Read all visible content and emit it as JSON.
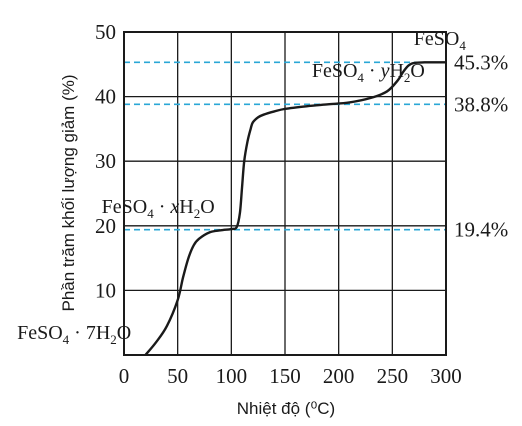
{
  "chart_data": {
    "type": "line",
    "xlabel": "Nhiệt độ (⁰C)",
    "ylabel": "Phần trăm khối lượng giảm (%)",
    "xlim": [
      0,
      300
    ],
    "ylim": [
      0,
      50
    ],
    "xticks": [
      0,
      50,
      100,
      150,
      200,
      250,
      300
    ],
    "yticks": [
      10,
      20,
      30,
      40,
      50
    ],
    "grid": true,
    "series": [
      {
        "x": [
          20,
          30,
          40,
          50,
          55,
          60,
          65,
          70,
          80,
          90,
          100,
          105,
          108,
          110,
          112,
          115,
          118,
          120,
          125,
          130,
          140,
          150,
          170,
          190,
          210,
          230,
          245,
          255,
          260,
          265,
          270,
          280,
          290,
          300
        ],
        "y": [
          0,
          2,
          4.5,
          8.5,
          12,
          15,
          17,
          18,
          19,
          19.3,
          19.5,
          19.8,
          22,
          26,
          30,
          33,
          35,
          36,
          36.8,
          37.2,
          37.7,
          38.1,
          38.5,
          38.8,
          39.1,
          39.8,
          40.8,
          42.5,
          43.8,
          44.8,
          45.2,
          45.3,
          45.3,
          45.3
        ]
      }
    ],
    "reference_lines": [
      {
        "y": 45.3,
        "label": "45.3%"
      },
      {
        "y": 38.8,
        "label": "38.8%"
      },
      {
        "y": 19.4,
        "label": "19.4%"
      }
    ],
    "annotations": {
      "a1": {
        "formula": "FeSO",
        "sub": "4",
        "x": 270,
        "y": 48
      },
      "a2": {
        "formula": "FeSO",
        "sub1": "4",
        "dot": " · ",
        "var": "y",
        "h": "H",
        "sub2": "2",
        "o": "O",
        "x": 175,
        "y": 43
      },
      "a3": {
        "formula": "FeSO",
        "sub1": "4",
        "dot": " · ",
        "var": "x",
        "h": "H",
        "sub2": "2",
        "o": "O",
        "x": 50,
        "y": 22
      },
      "a4": {
        "formula": "FeSO",
        "sub1": "4",
        "dot": " · ",
        "pre": "7H",
        "sub2": "2",
        "o": "O",
        "x": 15,
        "y": 2.5
      }
    }
  }
}
